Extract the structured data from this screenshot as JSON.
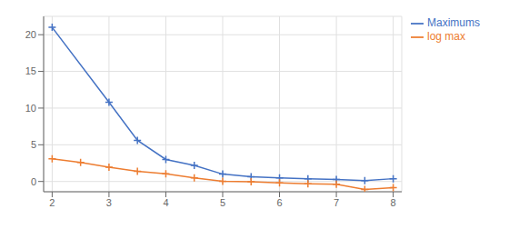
{
  "chart_data": {
    "type": "line",
    "series": [
      {
        "name": "Maximums",
        "color": "#4472c4",
        "marker": "plus",
        "x": [
          2,
          3,
          3.5,
          4,
          4.5,
          5,
          5.5,
          6,
          6.5,
          7,
          7.5,
          8
        ],
        "values": [
          21.0,
          10.8,
          5.6,
          3.0,
          2.2,
          1.0,
          0.65,
          0.5,
          0.38,
          0.28,
          0.12,
          0.38
        ]
      },
      {
        "name": "log max",
        "color": "#ed7d31",
        "marker": "plus",
        "x": [
          2,
          2.5,
          3,
          3.5,
          4,
          4.5,
          5,
          5.5,
          6,
          6.5,
          7,
          7.5,
          8
        ],
        "values": [
          3.1,
          2.6,
          1.95,
          1.4,
          1.05,
          0.5,
          0.03,
          -0.03,
          -0.18,
          -0.32,
          -0.38,
          -1.1,
          -0.85
        ]
      }
    ],
    "xlim": [
      1.85,
      8.15
    ],
    "ylim": [
      -1.4,
      22.5
    ],
    "xticks": [
      2,
      3,
      4,
      5,
      6,
      7,
      8
    ],
    "yticks": [
      0,
      5,
      10,
      15,
      20
    ],
    "grid": true,
    "legend": "right"
  }
}
